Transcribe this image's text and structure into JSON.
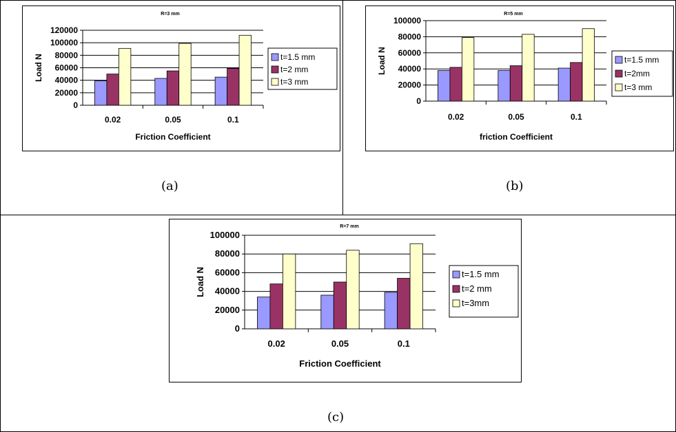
{
  "captions": {
    "a": "(a)",
    "b": "(b)",
    "c": "(c)"
  },
  "colors": {
    "s1": "#9999FF",
    "s2": "#993366",
    "s3": "#FFFFCC"
  },
  "chart_data": [
    {
      "type": "bar",
      "title": "R=3 mm",
      "xlabel": "Friction Coefficient",
      "ylabel": "Load N",
      "categories": [
        "0.02",
        "0.05",
        "0.1"
      ],
      "ylim": [
        0,
        120000
      ],
      "yticks": [
        0,
        20000,
        40000,
        60000,
        80000,
        100000,
        120000
      ],
      "ytick_labels": [
        "0",
        "20000",
        "40000",
        "60000",
        "80000",
        "100000",
        "120000"
      ],
      "series": [
        {
          "name": "t=1.5 mm",
          "values": [
            39000,
            43000,
            45000
          ]
        },
        {
          "name": "t=2 mm",
          "values": [
            50000,
            55000,
            59000
          ]
        },
        {
          "name": "t=3 mm",
          "values": [
            91000,
            99000,
            112000
          ]
        }
      ]
    },
    {
      "type": "bar",
      "title": "R=5 mm",
      "xlabel": "friction Coefficient",
      "ylabel": "Load N",
      "categories": [
        "0.02",
        "0.05",
        "0.1"
      ],
      "ylim": [
        0,
        100000
      ],
      "yticks": [
        0,
        20000,
        40000,
        60000,
        80000,
        100000
      ],
      "ytick_labels": [
        "0",
        "20000",
        "40000",
        "60000",
        "80000",
        "100000"
      ],
      "series": [
        {
          "name": "t=1.5 mm",
          "values": [
            38000,
            38000,
            41000
          ]
        },
        {
          "name": "t=2mm",
          "values": [
            42000,
            44000,
            48000
          ]
        },
        {
          "name": "t=3 mm",
          "values": [
            79000,
            83000,
            90000
          ]
        }
      ]
    },
    {
      "type": "bar",
      "title": "R=7 mm",
      "xlabel": "Friction Coefficient",
      "ylabel": "Load N",
      "categories": [
        "0.02",
        "0.05",
        "0.1"
      ],
      "ylim": [
        0,
        100000
      ],
      "yticks": [
        0,
        20000,
        40000,
        60000,
        80000,
        100000
      ],
      "ytick_labels": [
        "0",
        "20000",
        "40000",
        "60000",
        "80000",
        "100000"
      ],
      "series": [
        {
          "name": "t=1.5 mm",
          "values": [
            34000,
            36000,
            39000
          ]
        },
        {
          "name": "t=2 mm",
          "values": [
            48000,
            50000,
            54000
          ]
        },
        {
          "name": "t=3mm",
          "values": [
            80000,
            84000,
            91000
          ]
        }
      ]
    }
  ]
}
